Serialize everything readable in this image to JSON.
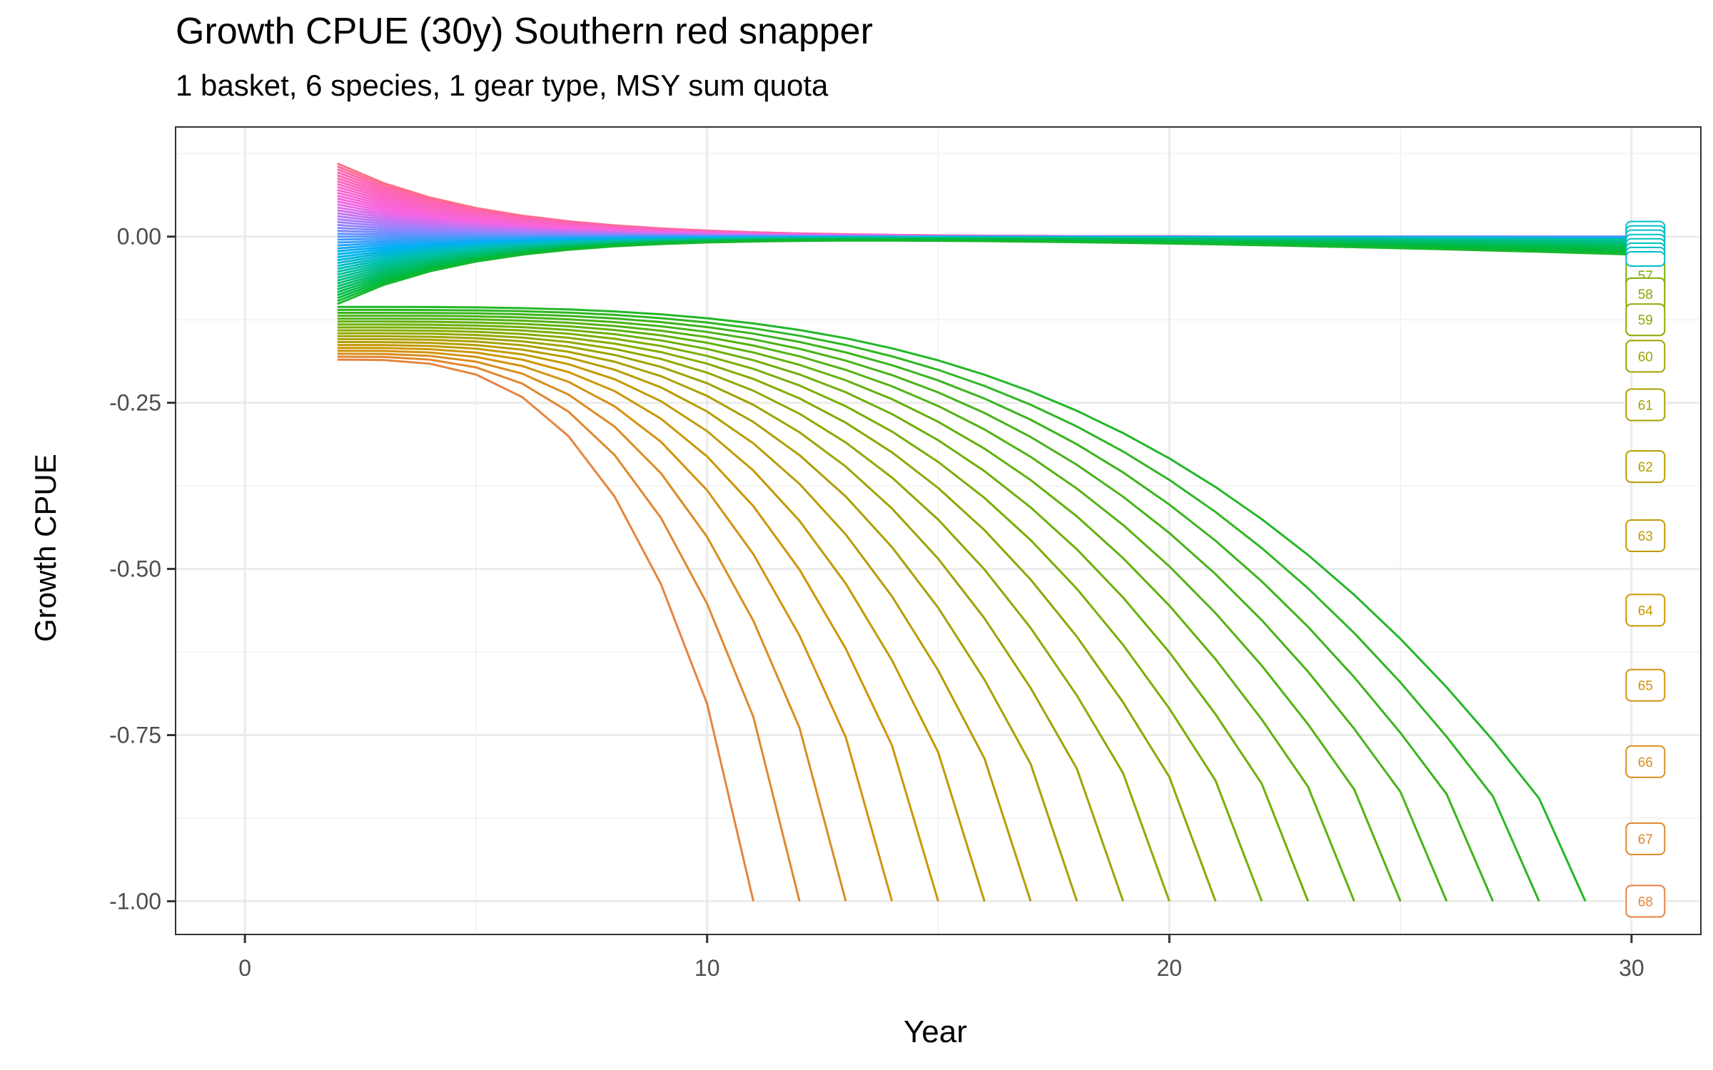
{
  "chart_data": {
    "type": "line",
    "title": "Growth CPUE (30y) Southern red snapper",
    "subtitle": "1 basket, 6 species, 1 gear type, MSY sum quota",
    "xlabel": "Year",
    "ylabel": "Growth CPUE",
    "xlim": [
      -1.5,
      31.5
    ],
    "ylim": [
      -1.05,
      0.165
    ],
    "x_ticks": [
      0,
      10,
      20,
      30
    ],
    "x_tick_labels": [
      "0",
      "10",
      "20",
      "30"
    ],
    "y_ticks": [
      0,
      -0.25,
      -0.5,
      -0.75,
      -1.0
    ],
    "y_tick_labels": [
      "0.00",
      "-0.25",
      "-0.50",
      "-0.75",
      "-1.00"
    ],
    "grid": true,
    "legend": "none",
    "series_start_year": 2,
    "series_end_year": 30,
    "series_start_value_range": [
      0.11,
      -0.185
    ],
    "series_count": 68,
    "collapse_to_minus_one": {
      "first_collapse_year": 11,
      "last_collapse_year": 29,
      "series_per_collapse_year": 1
    },
    "end_labels": [
      {
        "label": "57",
        "value": -0.058
      },
      {
        "label": "58",
        "value": -0.086
      },
      {
        "label": "59",
        "value": -0.125
      },
      {
        "label": "60",
        "value": -0.18
      },
      {
        "label": "61",
        "value": -0.253
      },
      {
        "label": "62",
        "value": -0.346
      },
      {
        "label": "63",
        "value": -0.45
      },
      {
        "label": "64",
        "value": -0.562
      },
      {
        "label": "65",
        "value": -0.675
      },
      {
        "label": "66",
        "value": -0.79
      },
      {
        "label": "67",
        "value": -0.906
      },
      {
        "label": "68",
        "value": -1.0
      }
    ],
    "colors": {
      "panel_border": "#333333",
      "grid_major": "#ebebeb",
      "grid_minor": "#f4f4f4",
      "hue_order": "HCL hue wheel, red (series 68) through orange, green, cyan, blue, violet, pink"
    }
  }
}
